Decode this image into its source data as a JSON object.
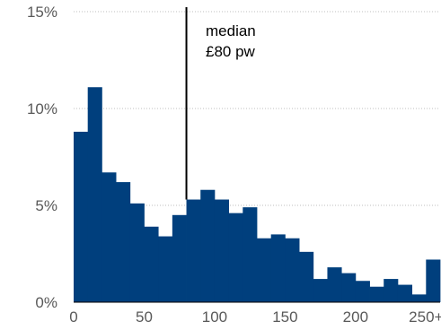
{
  "chart_data": {
    "type": "bar",
    "title": "",
    "xlabel": "",
    "ylabel": "",
    "x_ticks": [
      "0",
      "50",
      "100",
      "150",
      "200",
      "250+"
    ],
    "y_ticks": [
      "0%",
      "5%",
      "10%",
      "15%"
    ],
    "xlim": [
      0,
      260
    ],
    "ylim": [
      0,
      15
    ],
    "bin_width": 10,
    "grid": true,
    "colors": {
      "bar": "#003f7d",
      "grid": "#bfbfbf",
      "median_line": "#000000"
    },
    "bins": [
      {
        "x_start": 0,
        "x_end": 10,
        "value": 8.8
      },
      {
        "x_start": 10,
        "x_end": 20,
        "value": 11.1
      },
      {
        "x_start": 20,
        "x_end": 30,
        "value": 6.7
      },
      {
        "x_start": 30,
        "x_end": 40,
        "value": 6.2
      },
      {
        "x_start": 40,
        "x_end": 50,
        "value": 5.1
      },
      {
        "x_start": 50,
        "x_end": 60,
        "value": 3.9
      },
      {
        "x_start": 60,
        "x_end": 70,
        "value": 3.4
      },
      {
        "x_start": 70,
        "x_end": 80,
        "value": 4.5
      },
      {
        "x_start": 80,
        "x_end": 90,
        "value": 5.3
      },
      {
        "x_start": 90,
        "x_end": 100,
        "value": 5.8
      },
      {
        "x_start": 100,
        "x_end": 110,
        "value": 5.3
      },
      {
        "x_start": 110,
        "x_end": 120,
        "value": 4.6
      },
      {
        "x_start": 120,
        "x_end": 130,
        "value": 4.9
      },
      {
        "x_start": 130,
        "x_end": 140,
        "value": 3.3
      },
      {
        "x_start": 140,
        "x_end": 150,
        "value": 3.5
      },
      {
        "x_start": 150,
        "x_end": 160,
        "value": 3.3
      },
      {
        "x_start": 160,
        "x_end": 170,
        "value": 2.6
      },
      {
        "x_start": 170,
        "x_end": 180,
        "value": 1.2
      },
      {
        "x_start": 180,
        "x_end": 190,
        "value": 1.8
      },
      {
        "x_start": 190,
        "x_end": 200,
        "value": 1.5
      },
      {
        "x_start": 200,
        "x_end": 210,
        "value": 1.1
      },
      {
        "x_start": 210,
        "x_end": 220,
        "value": 0.8
      },
      {
        "x_start": 220,
        "x_end": 230,
        "value": 1.2
      },
      {
        "x_start": 230,
        "x_end": 240,
        "value": 0.9
      },
      {
        "x_start": 240,
        "x_end": 250,
        "value": 0.4
      },
      {
        "x_start": 250,
        "x_end": 260,
        "value": 2.2
      }
    ],
    "median": {
      "value": 80,
      "label_line1": "median",
      "label_line2": "£80 pw"
    }
  }
}
